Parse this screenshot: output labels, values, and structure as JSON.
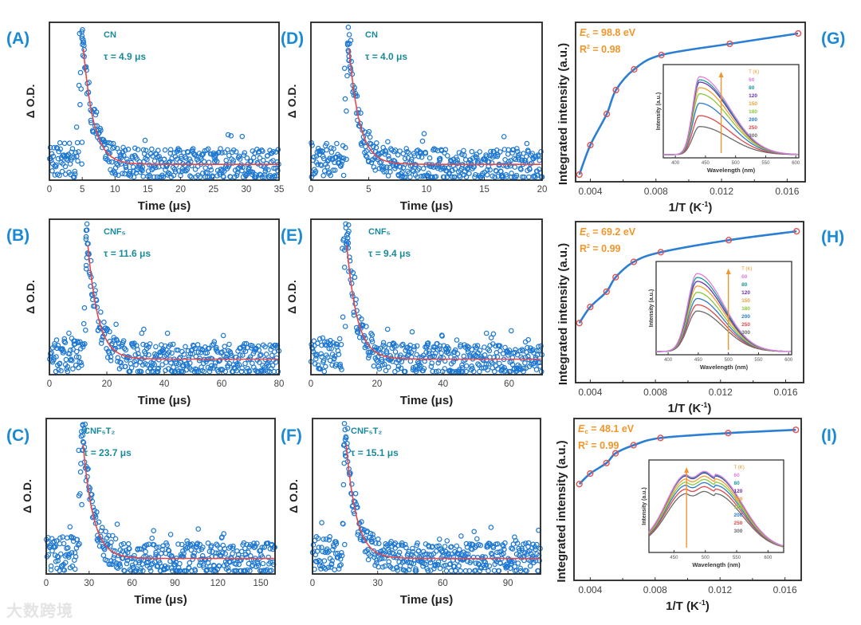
{
  "watermark": "大数跨境",
  "chart_data": [
    {
      "panel": "(A)",
      "type": "scatter",
      "sample": "CN",
      "tau_label": "τ = 4.9 μs",
      "xlabel": "Time (μs)",
      "ylabel": "Δ O.D.",
      "xlim": [
        0,
        35
      ],
      "xticks": [
        0,
        5,
        10,
        15,
        20,
        25,
        30,
        35
      ],
      "peak_time": 5,
      "series": [
        {
          "name": "data",
          "color": "#1e78d2"
        },
        {
          "name": "exponential fit",
          "color": "#e8474a"
        }
      ]
    },
    {
      "panel": "(B)",
      "type": "scatter",
      "sample": "CNF₅",
      "tau_label": "τ = 11.6 μs",
      "xlabel": "Time (μs)",
      "ylabel": "Δ O.D.",
      "xlim": [
        0,
        80
      ],
      "xticks": [
        0,
        20,
        40,
        60,
        80
      ],
      "peak_time": 13,
      "series": [
        {
          "name": "data",
          "color": "#1e78d2"
        },
        {
          "name": "exponential fit",
          "color": "#e8474a"
        }
      ]
    },
    {
      "panel": "(C)",
      "type": "scatter",
      "sample": "CNF₅T₂",
      "tau_label": "τ = 23.7 μs",
      "xlabel": "Time (μs)",
      "ylabel": "Δ O.D.",
      "xlim": [
        0,
        160
      ],
      "xticks": [
        0,
        30,
        60,
        90,
        120,
        150
      ],
      "peak_time": 25,
      "series": [
        {
          "name": "data",
          "color": "#1e78d2"
        },
        {
          "name": "exponential fit",
          "color": "#e8474a"
        }
      ]
    },
    {
      "panel": "(D)",
      "type": "scatter",
      "sample": "CN",
      "tau_label": "τ = 4.0 μs",
      "xlabel": "Time (μs)",
      "ylabel": "Δ O.D.",
      "xlim": [
        0,
        20
      ],
      "xticks": [
        0,
        5,
        10,
        15,
        20
      ],
      "peak_time": 3.2,
      "series": [
        {
          "name": "data",
          "color": "#1e78d2"
        },
        {
          "name": "exponential fit",
          "color": "#e8474a"
        }
      ]
    },
    {
      "panel": "(E)",
      "type": "scatter",
      "sample": "CNF₅",
      "tau_label": "τ = 9.4 μs",
      "xlabel": "Time (μs)",
      "ylabel": "Δ O.D.",
      "xlim": [
        0,
        70
      ],
      "xticks": [
        0,
        20,
        40,
        60
      ],
      "peak_time": 10.5,
      "series": [
        {
          "name": "data",
          "color": "#1e78d2"
        },
        {
          "name": "exponential fit",
          "color": "#e8474a"
        }
      ]
    },
    {
      "panel": "(F)",
      "type": "scatter",
      "sample": "CNF₅T₂",
      "tau_label": "τ = 15.1 μs",
      "xlabel": "Time (μs)",
      "ylabel": "Δ O.D.",
      "xlim": [
        0,
        105
      ],
      "xticks": [
        0,
        30,
        60,
        90
      ],
      "peak_time": 15,
      "series": [
        {
          "name": "data",
          "color": "#1e78d2"
        },
        {
          "name": "exponential fit",
          "color": "#e8474a"
        }
      ]
    },
    {
      "panel": "(G)",
      "type": "scatter",
      "ec_symbol": "E",
      "ec_sub": "c",
      "ec_value": " = 98.8 eV",
      "r2_symbol": "R",
      "r2_sup": "2",
      "r2_value": " = 0.98",
      "xlabel": "1/T (K",
      "xlabel_sup": "-1",
      "xlabel_end": ")",
      "ylabel": "Integrated intensity (a.u.)",
      "xlim": [
        0.0031,
        0.0171
      ],
      "ylim": [
        0,
        1
      ],
      "xticks": [
        "0.004",
        "0.008",
        "0.012",
        "0.016"
      ],
      "x": [
        0.00333,
        0.004,
        0.005,
        0.00556,
        0.00667,
        0.00833,
        0.0125,
        0.01667
      ],
      "y": [
        0.045,
        0.23,
        0.425,
        0.575,
        0.705,
        0.795,
        0.865,
        0.93
      ],
      "inset": {
        "type": "line",
        "xlabel": "Wavelength (nm)",
        "ylabel": "Intensity (a.u.)",
        "xlim": [
          380,
          605
        ],
        "xticks": [
          "400",
          "450",
          "500",
          "550",
          "600"
        ],
        "legend_title": "T (K)",
        "temperatures": [
          "60",
          "80",
          "120",
          "150",
          "180",
          "200",
          "250",
          "300"
        ],
        "relative_peak": [
          1.0,
          0.96,
          0.93,
          0.86,
          0.78,
          0.66,
          0.5,
          0.36
        ],
        "peak_nm": 440,
        "arrow_nm": 476
      }
    },
    {
      "panel": "(H)",
      "type": "scatter",
      "ec_symbol": "E",
      "ec_sub": "c",
      "ec_value": " = 69.2 eV",
      "r2_symbol": "R",
      "r2_sup": "2",
      "r2_value": " = 0.99",
      "xlabel": "1/T (K",
      "xlabel_sup": "-1",
      "xlabel_end": ")",
      "ylabel": "Integrated intensity (a.u.)",
      "xlim": [
        0.0031,
        0.0171
      ],
      "ylim": [
        0,
        1
      ],
      "xticks": [
        "0.004",
        "0.008",
        "0.012",
        "0.016"
      ],
      "x": [
        0.00333,
        0.004,
        0.005,
        0.00556,
        0.00667,
        0.00833,
        0.0125,
        0.01667
      ],
      "y": [
        0.37,
        0.47,
        0.565,
        0.655,
        0.75,
        0.81,
        0.885,
        0.94
      ],
      "inset": {
        "type": "line",
        "xlabel": "Wavelength (nm)",
        "ylabel": "Intensity (a.u.)",
        "xlim": [
          380,
          605
        ],
        "xticks": [
          "400",
          "450",
          "500",
          "550",
          "600"
        ],
        "legend_title": "T (K)",
        "temperatures": [
          "60",
          "80",
          "120",
          "150",
          "180",
          "200",
          "250",
          "300"
        ],
        "relative_peak": [
          1.0,
          0.95,
          0.9,
          0.84,
          0.76,
          0.68,
          0.6,
          0.52
        ],
        "peak_nm": 448,
        "arrow_nm": 500
      }
    },
    {
      "panel": "(I)",
      "type": "scatter",
      "ec_symbol": "E",
      "ec_sub": "c",
      "ec_value": " = 48.1 eV",
      "r2_symbol": "R",
      "r2_sup": "2",
      "r2_value": " = 0.99",
      "xlabel": "1/T (K",
      "xlabel_sup": "-1",
      "xlabel_end": ")",
      "ylabel": "Integrated intensity (a.u.)",
      "xlim": [
        0.003,
        0.017
      ],
      "ylim": [
        0,
        1
      ],
      "xticks": [
        "0.004",
        "0.008",
        "0.012",
        "0.016"
      ],
      "x": [
        0.00333,
        0.004,
        0.005,
        0.00556,
        0.00667,
        0.00833,
        0.0125,
        0.01667
      ],
      "y": [
        0.595,
        0.66,
        0.725,
        0.785,
        0.835,
        0.88,
        0.91,
        0.93
      ],
      "inset": {
        "type": "line",
        "xlabel": "Wavelength (nm)",
        "ylabel": "Intensity (a.u.)",
        "xlim": [
          410,
          625
        ],
        "xticks": [
          "450",
          "500",
          "550",
          "600"
        ],
        "legend_title": "T (K)",
        "temperatures": [
          "60",
          "80",
          "120",
          "150",
          "180",
          "200",
          "250",
          "300"
        ],
        "relative_peak": [
          0.97,
          0.96,
          0.95,
          0.91,
          0.87,
          0.83,
          0.78,
          0.72
        ],
        "peak_nm": 470,
        "arrow_nm": 470
      }
    }
  ],
  "colors": {
    "panel_label": "#1a8ad4",
    "annotation": "#1a8a9a",
    "data": "#1e78d2",
    "fit": "#e8474a",
    "orange": "#f0962a",
    "fit_blue": "#2a7fd4",
    "hollow_red": "#e05050",
    "temps": [
      "#e07ce0",
      "#1a9a9a",
      "#6a2fb0",
      "#f0a030",
      "#8cc83c",
      "#2a7ad0",
      "#e04848",
      "#6a6a6a"
    ]
  }
}
